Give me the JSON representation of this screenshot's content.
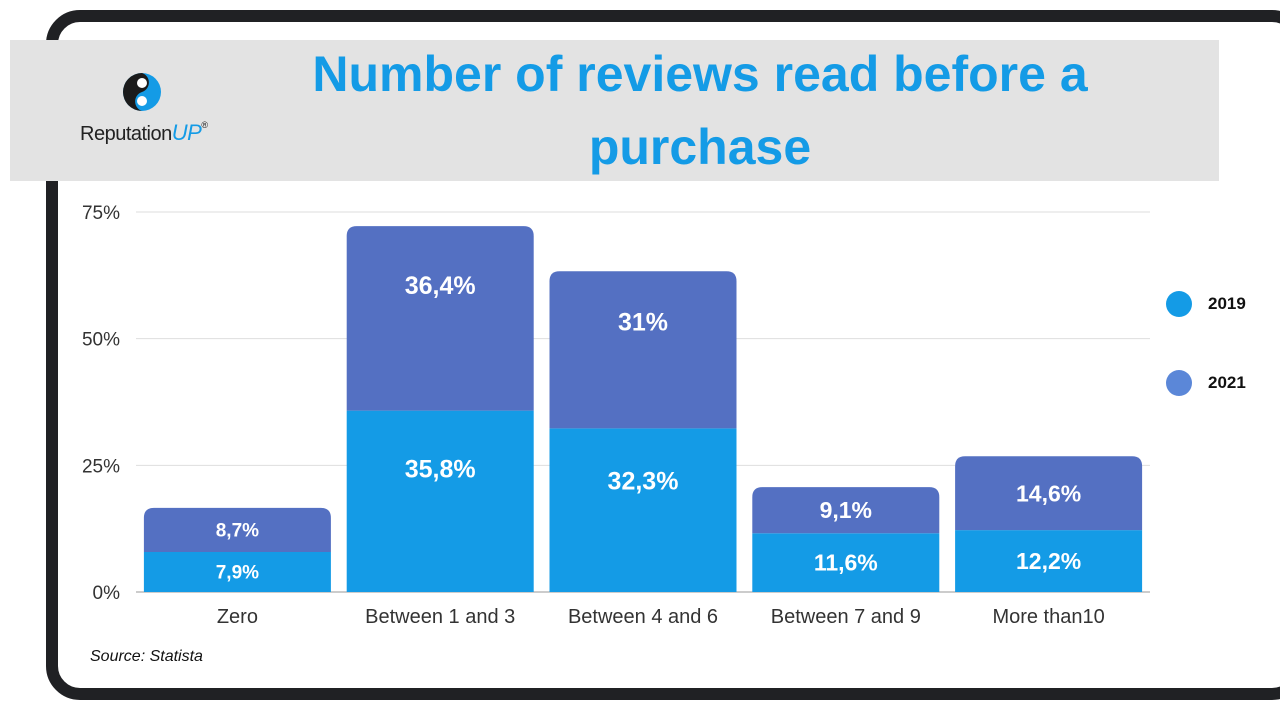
{
  "header": {
    "title": "Number of reviews read before a purchase",
    "logo_text": "Reputation",
    "logo_up": "UP",
    "logo_reg": "®"
  },
  "source_note": "Source: Statista",
  "colors": {
    "series_2019": "#149be6",
    "series_2021": "#5470c2",
    "legend_2021": "#5b87d8",
    "title": "#149be6"
  },
  "chart_data": {
    "type": "bar",
    "stacked": true,
    "title": "Number of reviews read before a purchase",
    "categories": [
      "Zero",
      "Between 1 and 3",
      "Between 4 and 6",
      "Between 7 and 9",
      "More than10"
    ],
    "series": [
      {
        "name": "2019",
        "values": [
          7.9,
          35.8,
          32.3,
          11.6,
          12.2
        ],
        "labels": [
          "7,9%",
          "35,8%",
          "32,3%",
          "11,6%",
          "12,2%"
        ]
      },
      {
        "name": "2021",
        "values": [
          8.7,
          36.4,
          31,
          9.1,
          14.6
        ],
        "labels": [
          "8,7%",
          "36,4%",
          "31%",
          "9,1%",
          "14,6%"
        ]
      }
    ],
    "ylim": [
      0,
      75
    ],
    "yticks": [
      0,
      25,
      50,
      75
    ],
    "ytick_labels": [
      "0%",
      "25%",
      "50%",
      "75%"
    ],
    "xlabel": "",
    "ylabel": "",
    "grid": true,
    "legend_position": "right"
  }
}
